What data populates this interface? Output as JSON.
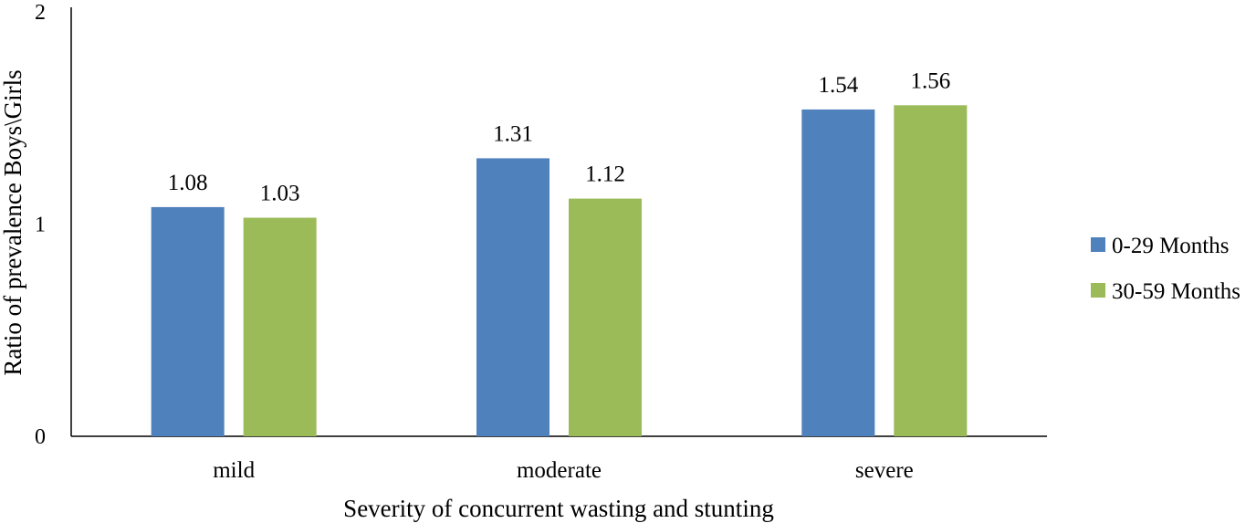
{
  "chart_data": {
    "type": "bar",
    "title": "",
    "xlabel": "Severity of concurrent wasting and stunting",
    "ylabel": "Ratio of prevalence Boys\\Girls",
    "ylim": [
      0,
      2
    ],
    "yticks": [
      "0",
      "1",
      "2"
    ],
    "grid": false,
    "legend_position": "right",
    "categories": [
      "mild",
      "moderate",
      "severe"
    ],
    "series": [
      {
        "name": "0-29 Months",
        "color": "#4f81bd",
        "values": [
          1.08,
          1.31,
          1.54
        ],
        "labels": [
          "1.08",
          "1.31",
          "1.54"
        ]
      },
      {
        "name": "30-59 Months",
        "color": "#9bbb59",
        "values": [
          1.03,
          1.12,
          1.56
        ],
        "labels": [
          "1.03",
          "1.12",
          "1.56"
        ]
      }
    ]
  }
}
